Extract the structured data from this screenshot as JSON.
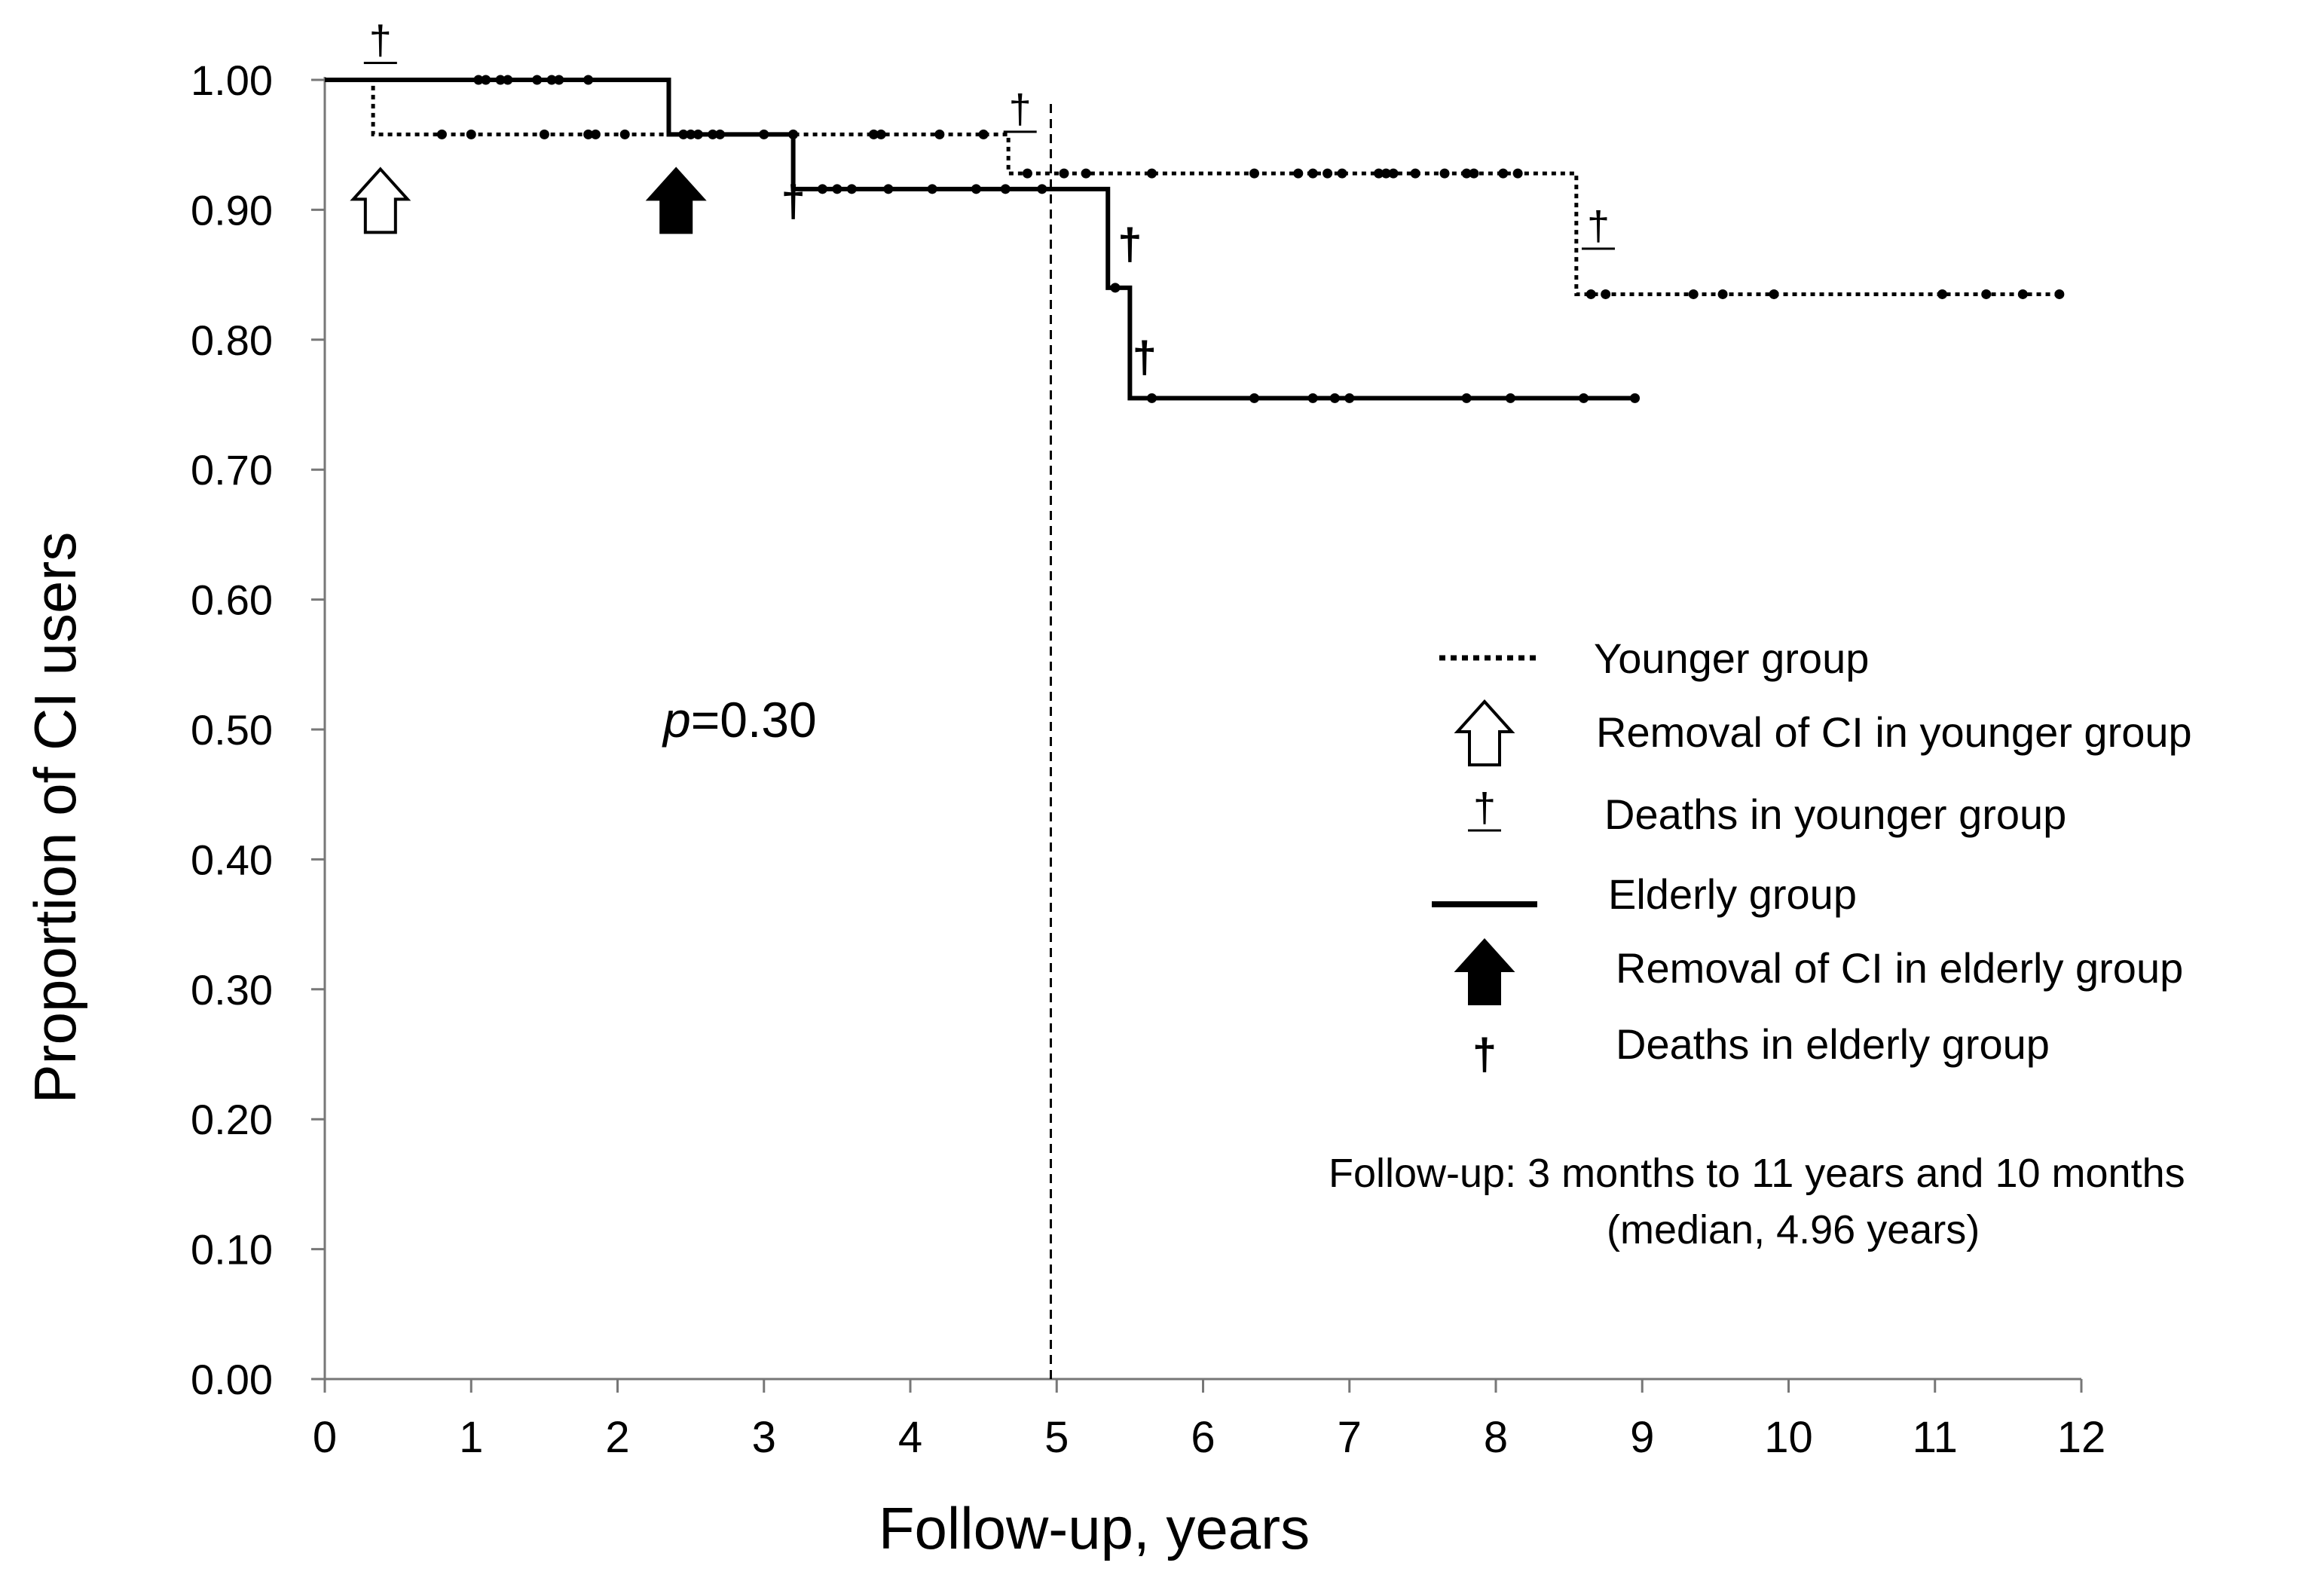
{
  "chart_data": {
    "type": "kaplan-meier step line",
    "title": "",
    "xlabel": "Follow-up, years",
    "ylabel": "Proportion of CI users",
    "xlim": [
      0,
      12
    ],
    "ylim": [
      0,
      1
    ],
    "x_ticks": [
      "0",
      "1",
      "2",
      "3",
      "4",
      "5",
      "6",
      "7",
      "8",
      "9",
      "10",
      "11",
      "12"
    ],
    "y_ticks": [
      "0.00",
      "0.10",
      "0.20",
      "0.30",
      "0.40",
      "0.50",
      "0.60",
      "0.70",
      "0.80",
      "0.90",
      "1.00"
    ],
    "median_line_x": 4.96,
    "p_value_prefix": "p",
    "p_value_text": "=0.30",
    "series": [
      {
        "name": "Younger group",
        "style": "dotted",
        "steps": [
          [
            0,
            1.0
          ],
          [
            0.33,
            1.0
          ],
          [
            0.33,
            0.958
          ],
          [
            4.67,
            0.958
          ],
          [
            4.67,
            0.928
          ],
          [
            8.55,
            0.928
          ],
          [
            8.55,
            0.835
          ],
          [
            11.85,
            0.835
          ]
        ],
        "censored": [
          [
            0.8,
            0.958
          ],
          [
            1.0,
            0.958
          ],
          [
            1.5,
            0.958
          ],
          [
            1.8,
            0.958
          ],
          [
            1.85,
            0.958
          ],
          [
            2.05,
            0.958
          ],
          [
            2.45,
            0.958
          ],
          [
            2.55,
            0.958
          ],
          [
            2.7,
            0.958
          ],
          [
            3.0,
            0.958
          ],
          [
            3.2,
            0.958
          ],
          [
            3.75,
            0.958
          ],
          [
            3.8,
            0.958
          ],
          [
            4.2,
            0.958
          ],
          [
            4.5,
            0.958
          ],
          [
            4.8,
            0.928
          ],
          [
            5.05,
            0.928
          ],
          [
            5.2,
            0.928
          ],
          [
            5.65,
            0.928
          ],
          [
            6.35,
            0.928
          ],
          [
            6.65,
            0.928
          ],
          [
            6.75,
            0.928
          ],
          [
            6.85,
            0.928
          ],
          [
            6.95,
            0.928
          ],
          [
            7.2,
            0.928
          ],
          [
            7.25,
            0.928
          ],
          [
            7.3,
            0.928
          ],
          [
            7.45,
            0.928
          ],
          [
            7.65,
            0.928
          ],
          [
            7.8,
            0.928
          ],
          [
            7.85,
            0.928
          ],
          [
            8.05,
            0.928
          ],
          [
            8.15,
            0.928
          ],
          [
            8.65,
            0.835
          ],
          [
            8.75,
            0.835
          ],
          [
            9.35,
            0.835
          ],
          [
            9.55,
            0.835
          ],
          [
            9.9,
            0.835
          ],
          [
            11.05,
            0.835
          ],
          [
            11.35,
            0.835
          ],
          [
            11.6,
            0.835
          ],
          [
            11.85,
            0.835
          ]
        ],
        "removals": [
          0.38
        ],
        "deaths": [
          [
            0.38,
            1.02
          ],
          [
            4.75,
            0.967
          ],
          [
            8.7,
            0.877
          ]
        ]
      },
      {
        "name": "Elderly group",
        "style": "solid",
        "steps": [
          [
            0,
            1.0
          ],
          [
            2.35,
            1.0
          ],
          [
            2.35,
            0.958
          ],
          [
            3.2,
            0.958
          ],
          [
            3.2,
            0.916
          ],
          [
            5.35,
            0.916
          ],
          [
            5.35,
            0.84
          ],
          [
            5.5,
            0.84
          ],
          [
            5.5,
            0.755
          ],
          [
            8.95,
            0.755
          ]
        ],
        "censored": [
          [
            1.05,
            1.0
          ],
          [
            1.1,
            1.0
          ],
          [
            1.2,
            1.0
          ],
          [
            1.25,
            1.0
          ],
          [
            1.45,
            1.0
          ],
          [
            1.55,
            1.0
          ],
          [
            1.6,
            1.0
          ],
          [
            1.8,
            1.0
          ],
          [
            2.5,
            0.958
          ],
          [
            2.65,
            0.958
          ],
          [
            3.4,
            0.916
          ],
          [
            3.5,
            0.916
          ],
          [
            3.6,
            0.916
          ],
          [
            3.85,
            0.916
          ],
          [
            4.15,
            0.916
          ],
          [
            4.45,
            0.916
          ],
          [
            4.65,
            0.916
          ],
          [
            4.9,
            0.916
          ],
          [
            5.4,
            0.84
          ],
          [
            5.65,
            0.755
          ],
          [
            6.35,
            0.755
          ],
          [
            6.75,
            0.755
          ],
          [
            6.9,
            0.755
          ],
          [
            7.0,
            0.755
          ],
          [
            7.8,
            0.755
          ],
          [
            8.1,
            0.755
          ],
          [
            8.6,
            0.755
          ],
          [
            8.95,
            0.755
          ]
        ],
        "removals": [
          2.4
        ],
        "deaths": [
          [
            3.2,
            0.895
          ],
          [
            5.5,
            0.862
          ],
          [
            5.6,
            0.775
          ]
        ]
      }
    ],
    "legend": [
      {
        "symbol": "dotted-line",
        "label": "Younger group"
      },
      {
        "symbol": "open-arrow",
        "label": "Removal of CI in younger group"
      },
      {
        "symbol": "dagger-underlined",
        "label": "Deaths in younger group"
      },
      {
        "symbol": "solid-line",
        "label": "Elderly group"
      },
      {
        "symbol": "filled-arrow",
        "label": "Removal of CI in elderly group"
      },
      {
        "symbol": "dagger-bold",
        "label": "Deaths in elderly group"
      }
    ],
    "note_line1": "Follow-up: 3 months to 11 years and 10 months",
    "note_line2": "(median, 4.96 years)",
    "dagger_symbol": "†"
  }
}
